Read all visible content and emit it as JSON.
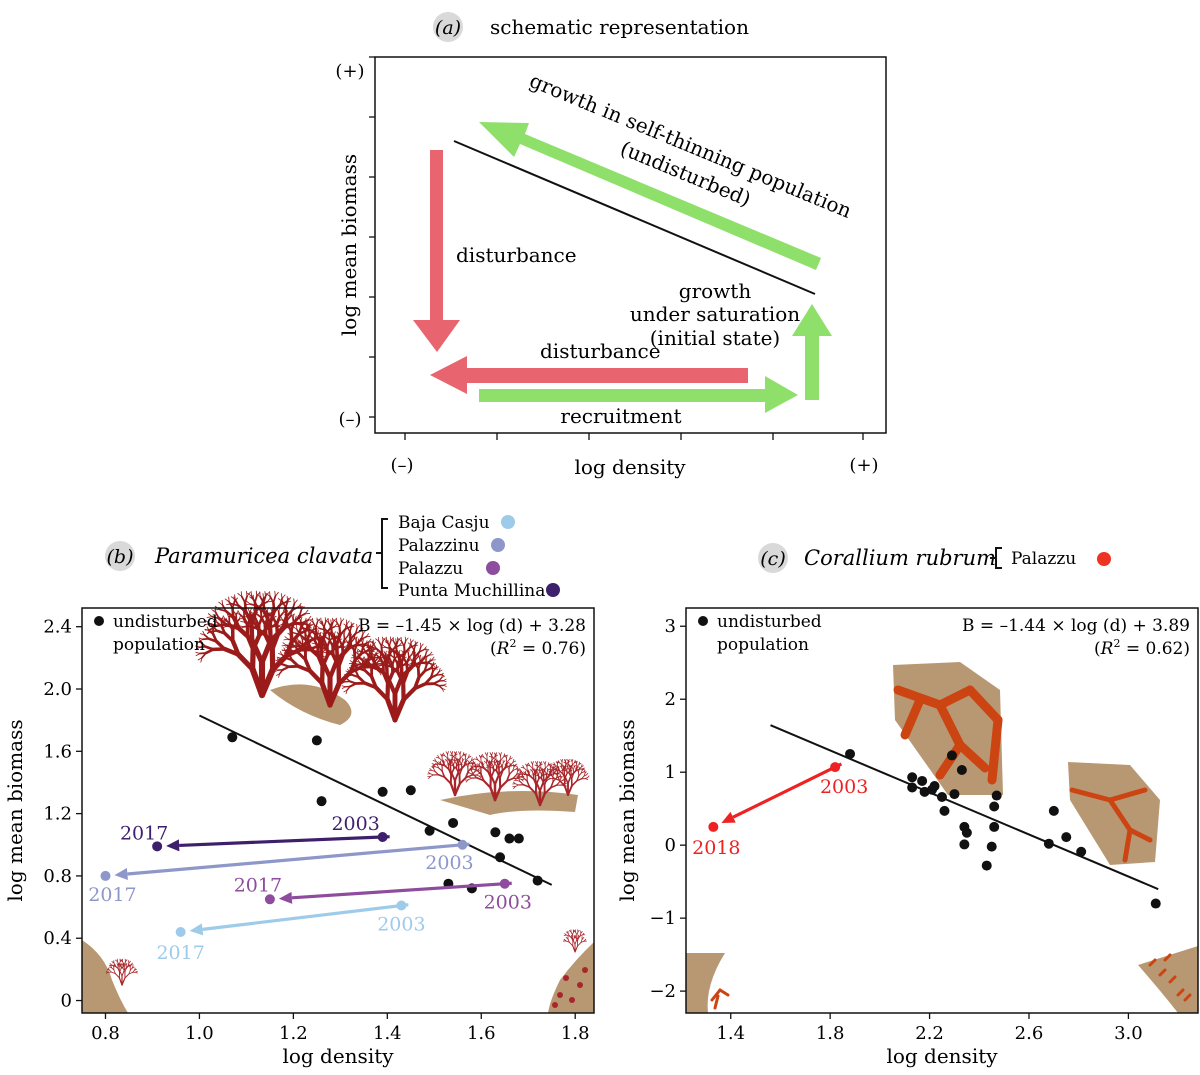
{
  "panels": {
    "a": {
      "letter": "a",
      "title": "schematic representation"
    },
    "b": {
      "letter": "b",
      "species": "Paramuricea clavata"
    },
    "c": {
      "letter": "c",
      "species": "Corallium rubrum"
    }
  },
  "chart_data": [
    {
      "type": "diagram",
      "panel": "a",
      "xlabel": "log density",
      "ylabel": "log mean biomass",
      "x_ends": [
        "(–)",
        "(+)"
      ],
      "y_ends": [
        "(+)",
        "(–)"
      ],
      "labels": {
        "growth_self_thinning_1": "growth in self-thinning population",
        "growth_self_thinning_2": "(undisturbed)",
        "disturbance_vertical": "disturbance",
        "disturbance_horizontal": "disturbance",
        "growth_saturation_1": "growth",
        "growth_saturation_2": "under saturation",
        "growth_saturation_3": "(initial state)",
        "recruitment": "recruitment"
      },
      "colors": {
        "growth": "#8ee06b",
        "disturbance": "#e8646e"
      }
    },
    {
      "type": "scatter",
      "panel": "b",
      "xlabel": "log density",
      "ylabel": "log mean biomass",
      "xlim": [
        0.75,
        1.84
      ],
      "ylim": [
        -0.08,
        2.52
      ],
      "xticks": [
        0.8,
        1.0,
        1.2,
        1.4,
        1.6,
        1.8
      ],
      "xtick_labels": [
        "0.8",
        "1.0",
        "1.2",
        "1.4",
        "1.6",
        "1.8"
      ],
      "yticks": [
        0,
        0.4,
        0.8,
        1.2,
        1.6,
        2.0,
        2.4
      ],
      "ytick_labels": [
        "0",
        "0.4",
        "0.8",
        "1.2",
        "1.6",
        "2.0",
        "2.4"
      ],
      "equation": "B = –1.45 × log (d) + 3.28",
      "r2_prefix": "(",
      "r2_symbol": "R",
      "r2_exp": "2",
      "r2_value": " = 0.76)",
      "fit": {
        "slope": -1.45,
        "intercept": 3.28,
        "x_range": [
          1.0,
          1.75
        ]
      },
      "undisturbed_label_1": "undisturbed",
      "undisturbed_label_2": "population",
      "undisturbed_points": [
        {
          "x": 1.07,
          "y": 1.69
        },
        {
          "x": 1.25,
          "y": 1.67
        },
        {
          "x": 1.26,
          "y": 1.28
        },
        {
          "x": 1.39,
          "y": 1.34
        },
        {
          "x": 1.45,
          "y": 1.35
        },
        {
          "x": 1.49,
          "y": 1.09
        },
        {
          "x": 1.54,
          "y": 1.14
        },
        {
          "x": 1.53,
          "y": 0.75
        },
        {
          "x": 1.58,
          "y": 0.72
        },
        {
          "x": 1.63,
          "y": 1.08
        },
        {
          "x": 1.64,
          "y": 0.92
        },
        {
          "x": 1.66,
          "y": 1.04
        },
        {
          "x": 1.68,
          "y": 1.04
        },
        {
          "x": 1.72,
          "y": 0.77
        }
      ],
      "legend": [
        {
          "name": "Baja Casju",
          "color": "#9ecbe9"
        },
        {
          "name": "Palazzinu",
          "color": "#8e97c9"
        },
        {
          "name": "Palazzu",
          "color": "#8e4c9e"
        },
        {
          "name": "Punta Muchillina",
          "color": "#3e1f6b"
        }
      ],
      "series": [
        {
          "name": "Punta Muchillina",
          "color": "#3e1f6b",
          "start": {
            "x": 1.39,
            "y": 1.05,
            "label": "2003"
          },
          "end": {
            "x": 0.91,
            "y": 0.99,
            "label": "2017"
          }
        },
        {
          "name": "Palazzinu",
          "color": "#8e97c9",
          "start": {
            "x": 1.56,
            "y": 1.0,
            "label": "2003"
          },
          "end": {
            "x": 0.8,
            "y": 0.8,
            "label": "2017"
          }
        },
        {
          "name": "Palazzu",
          "color": "#8e4c9e",
          "start": {
            "x": 1.65,
            "y": 0.75,
            "label": "2003"
          },
          "end": {
            "x": 1.15,
            "y": 0.65,
            "label": "2017"
          }
        },
        {
          "name": "Baja Casju",
          "color": "#9ecbe9",
          "start": {
            "x": 1.43,
            "y": 0.61,
            "label": "2003"
          },
          "end": {
            "x": 0.96,
            "y": 0.44,
            "label": "2017"
          }
        }
      ]
    },
    {
      "type": "scatter",
      "panel": "c",
      "xlabel": "log density",
      "ylabel": "log mean biomass",
      "xlim": [
        1.22,
        3.28
      ],
      "ylim": [
        -2.3,
        3.25
      ],
      "xticks": [
        1.4,
        1.8,
        2.2,
        2.6,
        3.0
      ],
      "xtick_labels": [
        "1.4",
        "1.8",
        "2.2",
        "2.6",
        "3.0"
      ],
      "yticks": [
        -2,
        -1,
        0,
        1,
        2,
        3
      ],
      "ytick_labels": [
        "−2",
        "−1",
        "0",
        "1",
        "2",
        "3"
      ],
      "equation": "B = –1.44 × log (d) + 3.89",
      "r2_prefix": "(",
      "r2_symbol": "R",
      "r2_exp": "2",
      "r2_value": " = 0.62)",
      "fit": {
        "slope": -1.44,
        "intercept": 3.89,
        "x_range": [
          1.56,
          3.12
        ]
      },
      "undisturbed_label_1": "undisturbed",
      "undisturbed_label_2": "population",
      "undisturbed_points": [
        {
          "x": 1.88,
          "y": 1.25
        },
        {
          "x": 2.13,
          "y": 0.93
        },
        {
          "x": 2.13,
          "y": 0.79
        },
        {
          "x": 2.17,
          "y": 0.88
        },
        {
          "x": 2.18,
          "y": 0.73
        },
        {
          "x": 2.21,
          "y": 0.76
        },
        {
          "x": 2.22,
          "y": 0.81
        },
        {
          "x": 2.25,
          "y": 0.66
        },
        {
          "x": 2.26,
          "y": 0.47
        },
        {
          "x": 2.29,
          "y": 1.23
        },
        {
          "x": 2.3,
          "y": 0.7
        },
        {
          "x": 2.33,
          "y": 1.03
        },
        {
          "x": 2.34,
          "y": 0.25
        },
        {
          "x": 2.35,
          "y": 0.17
        },
        {
          "x": 2.34,
          "y": 0.01
        },
        {
          "x": 2.43,
          "y": -0.28
        },
        {
          "x": 2.45,
          "y": -0.02
        },
        {
          "x": 2.46,
          "y": 0.53
        },
        {
          "x": 2.46,
          "y": 0.25
        },
        {
          "x": 2.47,
          "y": 0.68
        },
        {
          "x": 2.68,
          "y": 0.02
        },
        {
          "x": 2.7,
          "y": 0.47
        },
        {
          "x": 2.75,
          "y": 0.11
        },
        {
          "x": 2.81,
          "y": -0.09
        },
        {
          "x": 3.11,
          "y": -0.8
        }
      ],
      "legend": [
        {
          "name": "Palazzu",
          "color": "#ee3322"
        }
      ],
      "series": [
        {
          "name": "Palazzu",
          "color": "#ee2222",
          "start": {
            "x": 1.82,
            "y": 1.07,
            "label": "2003"
          },
          "end": {
            "x": 1.33,
            "y": 0.25,
            "label": "2018"
          }
        }
      ]
    }
  ]
}
